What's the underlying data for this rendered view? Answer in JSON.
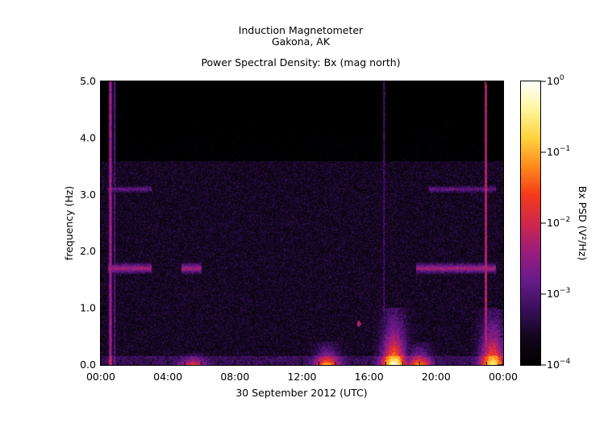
{
  "chart_data": {
    "type": "heatmap",
    "title": [
      "Induction Magnetometer",
      "Gakona, AK"
    ],
    "subtitle": "Power Spectral Density: Bx (mag north)",
    "xlabel": "30 September 2012 (UTC)",
    "ylabel": "frequency (Hz)",
    "x_ticks": [
      "00:00",
      "04:00",
      "08:00",
      "12:00",
      "16:00",
      "20:00",
      "00:00"
    ],
    "y_ticks": [
      "0.0",
      "1.0",
      "2.0",
      "3.0",
      "4.0",
      "5.0"
    ],
    "x_range_hours": [
      0,
      24
    ],
    "ylim": [
      0,
      5
    ],
    "colorbar": {
      "label": "Bx PSD (V²/Hz)",
      "scale": "log",
      "range": [
        0.0001,
        1
      ],
      "ticks": [
        {
          "base": "10",
          "exp": "0",
          "value": 1
        },
        {
          "base": "10",
          "exp": "−1",
          "value": 0.1
        },
        {
          "base": "10",
          "exp": "−2",
          "value": 0.01
        },
        {
          "base": "10",
          "exp": "−3",
          "value": 0.001
        },
        {
          "base": "10",
          "exp": "−4",
          "value": 0.0001
        }
      ],
      "colormap": [
        "#000000",
        "#14061e",
        "#3a0f5e",
        "#6a1b8c",
        "#9c1c7c",
        "#d0284c",
        "#f53a1a",
        "#ff8a1c",
        "#ffd23c",
        "#fff59a",
        "#ffffff"
      ]
    },
    "features": {
      "background_log_psd": -3.6,
      "bands_hz": [
        {
          "f": 1.7,
          "width": 0.08,
          "log_psd": -2.3,
          "hours": [
            [
              0.4,
              3.0
            ],
            [
              4.8,
              6.0
            ],
            [
              18.8,
              23.6
            ]
          ]
        },
        {
          "f": 3.1,
          "width": 0.08,
          "log_psd": -2.8,
          "hours": [
            [
              0.4,
              3.0
            ],
            [
              19.6,
              23.6
            ]
          ]
        }
      ],
      "vertical_lines": [
        {
          "hour": 0.55,
          "log_psd": -2.2
        },
        {
          "hour": 0.8,
          "log_psd": -2.9
        },
        {
          "hour": 16.9,
          "log_psd": -3.0
        },
        {
          "hour": 23.0,
          "log_psd": -2.0
        }
      ],
      "low_frequency_bursts": [
        {
          "hour": 5.5,
          "fmax": 0.1,
          "log_psd": -2.4
        },
        {
          "hour": 13.5,
          "fmax": 0.2,
          "log_psd": -1.9
        },
        {
          "hour": 17.5,
          "fmax": 0.5,
          "log_psd": -1.2
        },
        {
          "hour": 19.0,
          "fmax": 0.2,
          "log_psd": -2.0
        },
        {
          "hour": 23.4,
          "fmax": 0.5,
          "log_psd": -1.4
        }
      ],
      "spot": {
        "hour": 15.4,
        "f": 0.72,
        "log_psd": -1.8
      }
    }
  }
}
